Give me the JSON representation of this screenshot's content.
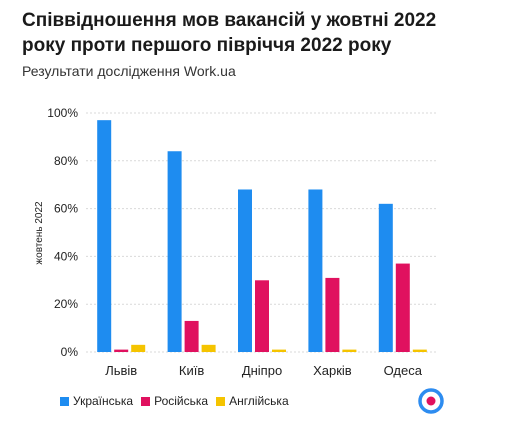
{
  "header": {
    "title": "Співвідношення мов вакансій у жовтні 2022 року проти першого півріччя 2022 року",
    "subtitle": "Результати дослідження Work.ua"
  },
  "colors": {
    "ukrainian": "#1e8cf0",
    "russian": "#e0115f",
    "english": "#f5c400",
    "grid": "#d9d9d9",
    "logo_ring": "#2d8cf0",
    "logo_dot": "#e0115f"
  },
  "logo": {
    "icon": "target-logo-icon"
  },
  "chart_data": {
    "type": "bar",
    "categories": [
      "Львів",
      "Київ",
      "Дніпро",
      "Харків",
      "Одеса"
    ],
    "series": [
      {
        "name": "Українська",
        "color": "#1e8cf0",
        "values": [
          97,
          84,
          68,
          68,
          62
        ]
      },
      {
        "name": "Російська",
        "color": "#e0115f",
        "values": [
          1,
          13,
          30,
          31,
          37
        ]
      },
      {
        "name": "Англійська",
        "color": "#f5c400",
        "values": [
          3,
          3,
          1,
          1,
          1
        ]
      }
    ],
    "ylabel": "жовтень 2022",
    "ylim": [
      0,
      100
    ],
    "yticks": [
      0,
      20,
      40,
      60,
      80,
      100
    ],
    "ytick_labels": [
      "0%",
      "20%",
      "40%",
      "60%",
      "80%",
      "100%"
    ],
    "grid": true,
    "legend": "bottom-left"
  }
}
